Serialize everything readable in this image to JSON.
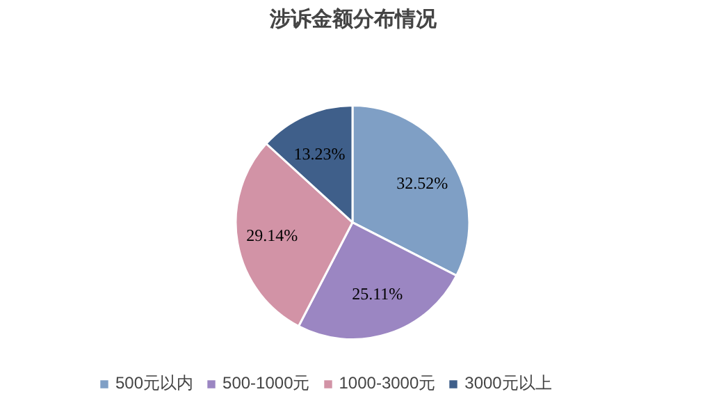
{
  "chart_data": {
    "type": "pie",
    "title": "涉诉金额分布情况",
    "categories": [
      "500元以内",
      "500-1000元",
      "1000-3000元",
      "3000元以上"
    ],
    "values": [
      32.52,
      25.11,
      29.14,
      13.23
    ],
    "colors": [
      "#7f9fc5",
      "#9b86c2",
      "#d293a6",
      "#3f5f8a"
    ],
    "value_labels": [
      "32.52%",
      "25.11%",
      "29.14%",
      "13.23%"
    ],
    "legend": "bottom"
  }
}
